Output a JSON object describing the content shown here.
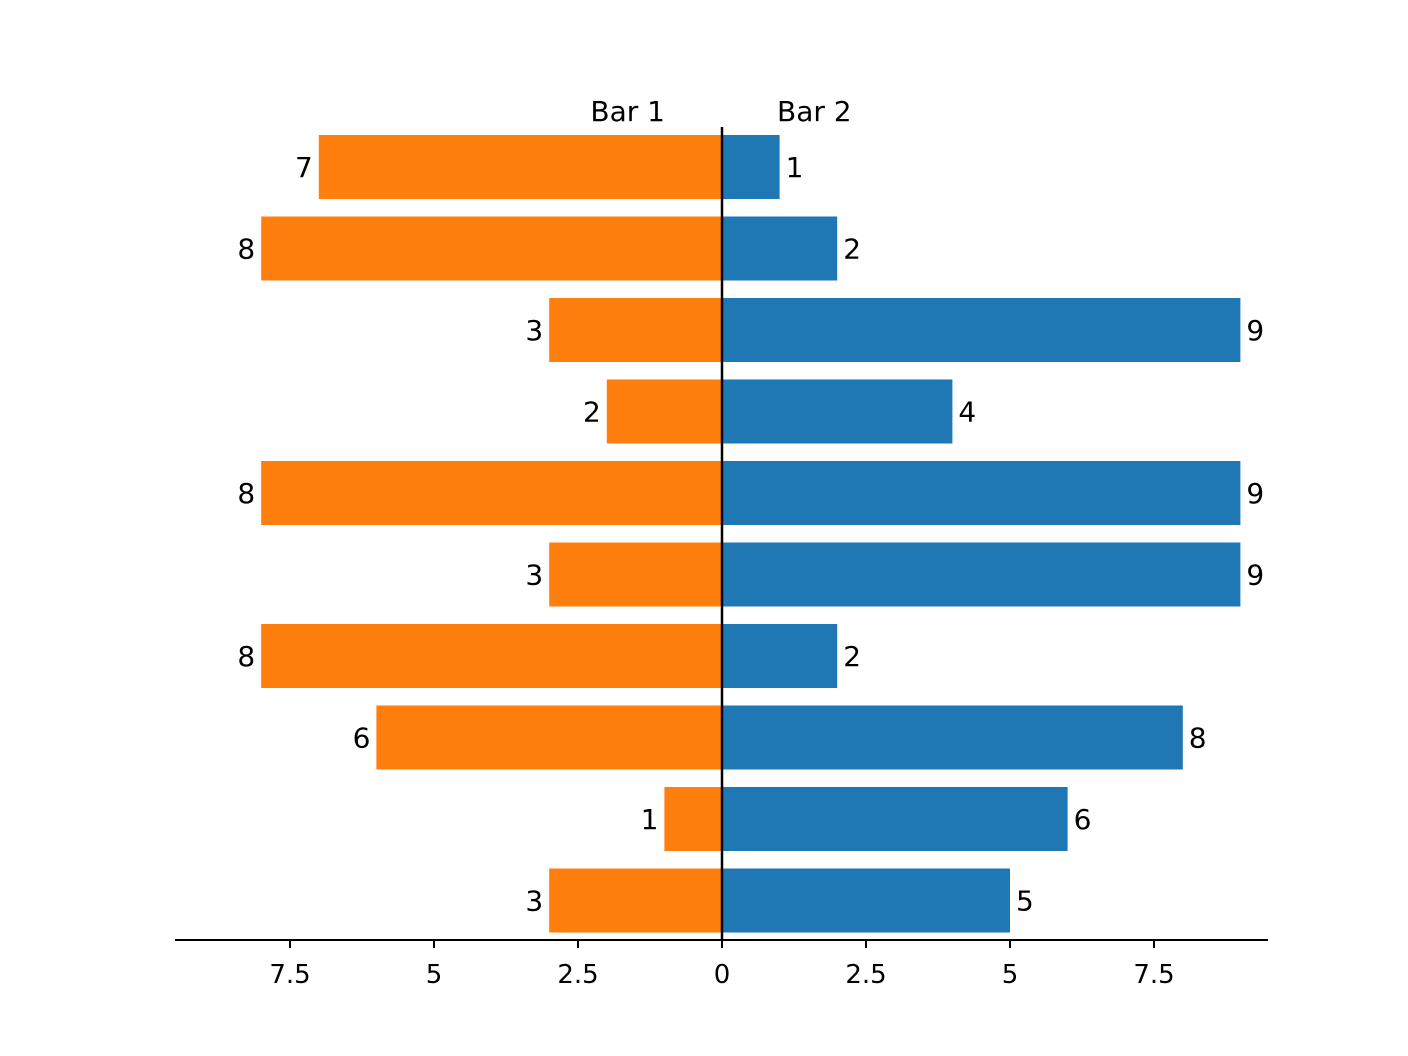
{
  "chart_data": {
    "type": "bar",
    "orientation": "horizontal-diverging",
    "series": [
      {
        "name": "Bar 1",
        "color": "#ff7f0e",
        "direction": "left",
        "values": [
          7,
          8,
          3,
          2,
          8,
          3,
          8,
          6,
          1,
          3
        ]
      },
      {
        "name": "Bar 2",
        "color": "#1f77b4",
        "direction": "right",
        "values": [
          1,
          2,
          9,
          4,
          9,
          9,
          2,
          8,
          6,
          5
        ]
      }
    ],
    "xlim": [
      -9.5,
      9.5
    ],
    "x_ticks": [
      {
        "value": -7.5,
        "label": "7.5"
      },
      {
        "value": -5,
        "label": "5"
      },
      {
        "value": -2.5,
        "label": "2.5"
      },
      {
        "value": 0,
        "label": "0"
      },
      {
        "value": 2.5,
        "label": "2.5"
      },
      {
        "value": 5,
        "label": "5"
      },
      {
        "value": 7.5,
        "label": "7.5"
      }
    ],
    "grid": false,
    "data_labels": true
  }
}
